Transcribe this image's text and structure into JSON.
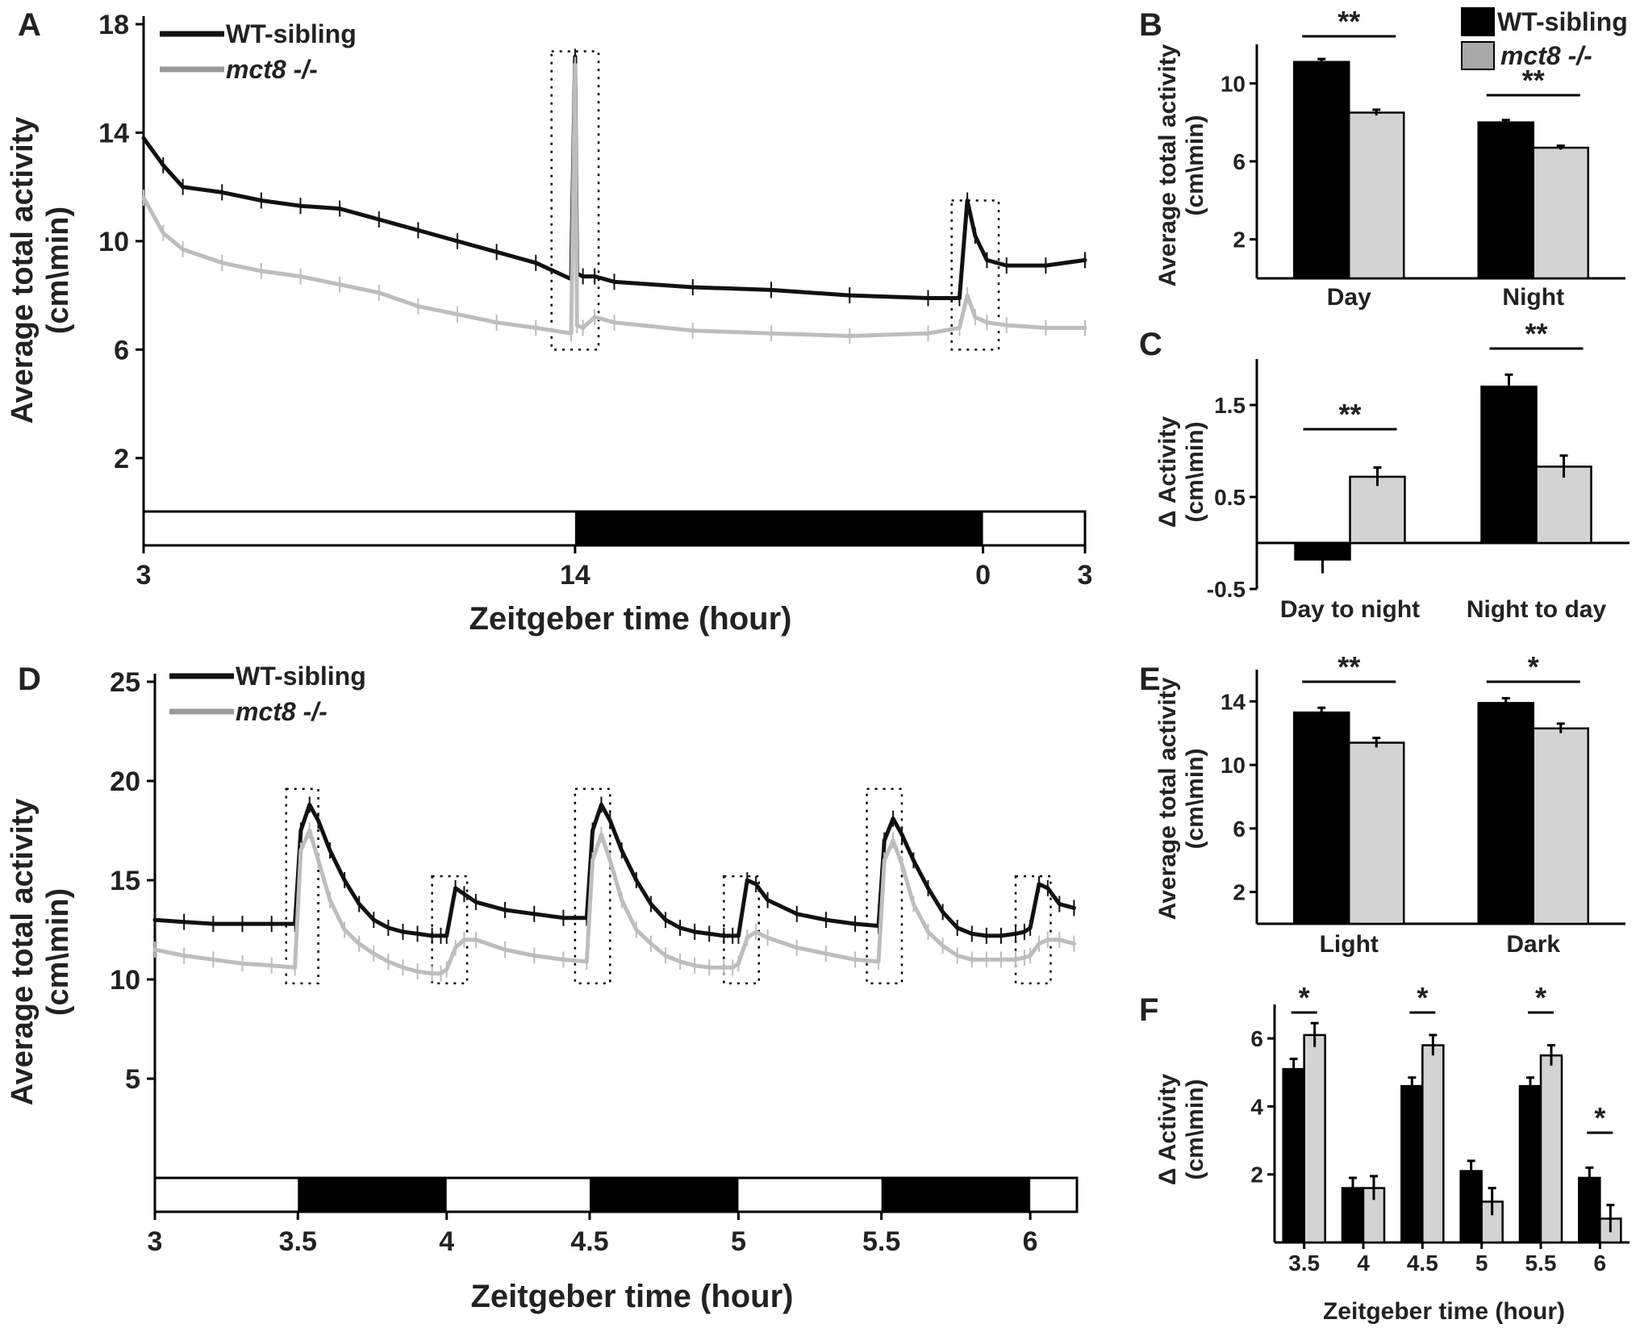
{
  "chart_data": [
    {
      "panel": "A",
      "type": "line",
      "xlabel": "Zeitgeber time (hour)",
      "ylabel": "Average total activity\n(cm\\min)",
      "yticks": [
        "2",
        "6",
        "10",
        "14",
        "18"
      ],
      "ylim": [
        0,
        18
      ],
      "xticks": [
        "3",
        "14",
        "0",
        "3"
      ],
      "legend": [
        "WT-sibling",
        "mct8 -/-"
      ],
      "light_dark_bar": [
        "light",
        "dark",
        "light"
      ],
      "series": [
        {
          "name": "WT-sibling",
          "color": "#111111",
          "x": [
            0,
            0.5,
            1,
            2,
            3,
            4,
            5,
            6,
            7,
            8,
            9,
            10,
            10.9,
            11,
            11.05,
            11.2,
            11.5,
            12,
            14,
            16,
            18,
            20,
            20.8,
            21,
            21.2,
            21.5,
            22,
            23,
            24
          ],
          "y": [
            13.8,
            12.8,
            12.0,
            11.8,
            11.5,
            11.3,
            11.2,
            10.8,
            10.4,
            10.0,
            9.6,
            9.2,
            8.6,
            16.8,
            8.8,
            8.7,
            8.7,
            8.5,
            8.3,
            8.2,
            8.0,
            7.9,
            7.9,
            11.5,
            10.2,
            9.3,
            9.1,
            9.1,
            9.3
          ]
        },
        {
          "name": "mct8 -/-",
          "color": "#bdbdbd",
          "x": [
            0,
            0.5,
            1,
            2,
            3,
            4,
            5,
            6,
            7,
            8,
            9,
            10,
            10.9,
            11,
            11.05,
            11.2,
            11.5,
            12,
            14,
            16,
            18,
            20,
            20.8,
            21,
            21.2,
            21.5,
            22,
            23,
            24
          ],
          "y": [
            11.6,
            10.3,
            9.7,
            9.2,
            8.9,
            8.7,
            8.4,
            8.1,
            7.6,
            7.3,
            7.0,
            6.8,
            6.6,
            16.5,
            6.9,
            6.8,
            7.2,
            7.0,
            6.7,
            6.6,
            6.5,
            6.6,
            6.8,
            8.0,
            7.2,
            7.0,
            6.9,
            6.8,
            6.8
          ]
        }
      ]
    },
    {
      "panel": "B",
      "type": "bar",
      "ylabel": "Average total activity\n(cm\\min)",
      "yticks": [
        "2",
        "6",
        "10"
      ],
      "ylim": [
        0,
        12
      ],
      "categories": [
        "Day",
        "Night"
      ],
      "legend": [
        "WT-sibling",
        "mct8 -/-"
      ],
      "series": [
        {
          "name": "WT-sibling",
          "color": "#000000",
          "values": [
            11.1,
            8.0
          ],
          "errors": [
            0.15,
            0.12
          ]
        },
        {
          "name": "mct8 -/-",
          "color": "#d3d3d3",
          "values": [
            8.5,
            6.7
          ],
          "errors": [
            0.15,
            0.1
          ]
        }
      ],
      "significance": [
        "**",
        "**"
      ]
    },
    {
      "panel": "C",
      "type": "bar",
      "ylabel": "Δ Activity\n(cm\\min)",
      "yticks": [
        "-0.5",
        "0.5",
        "1.5"
      ],
      "ylim": [
        -0.5,
        2.0
      ],
      "categories": [
        "Day to night",
        "Night to day"
      ],
      "series": [
        {
          "name": "WT-sibling",
          "color": "#000000",
          "values": [
            -0.18,
            1.7
          ],
          "errors": [
            0.15,
            0.13
          ]
        },
        {
          "name": "mct8 -/-",
          "color": "#d3d3d3",
          "values": [
            0.72,
            0.83
          ],
          "errors": [
            0.1,
            0.12
          ]
        }
      ],
      "significance": [
        "**",
        "**"
      ]
    },
    {
      "panel": "D",
      "type": "line",
      "xlabel": "Zeitgeber time (hour)",
      "ylabel": "Average total activity\n(cm\\min)",
      "yticks": [
        "5",
        "10",
        "15",
        "20",
        "25"
      ],
      "ylim": [
        0,
        25
      ],
      "xticks": [
        "3",
        "3.5",
        "4",
        "4.5",
        "5",
        "5.5",
        "6"
      ],
      "legend": [
        "WT-sibling",
        "mct8 -/-"
      ],
      "light_dark_bar": [
        "light",
        "dark",
        "light",
        "dark",
        "light",
        "dark",
        "light"
      ],
      "series": [
        {
          "name": "WT-sibling",
          "color": "#111111",
          "x": [
            3.0,
            3.1,
            3.2,
            3.3,
            3.4,
            3.48,
            3.5,
            3.53,
            3.56,
            3.6,
            3.65,
            3.7,
            3.75,
            3.8,
            3.85,
            3.9,
            3.95,
            3.98,
            4.0,
            4.03,
            4.06,
            4.1,
            4.2,
            4.3,
            4.4,
            4.48,
            4.5,
            4.53,
            4.56,
            4.6,
            4.65,
            4.7,
            4.75,
            4.8,
            4.85,
            4.9,
            4.95,
            4.98,
            5.0,
            5.03,
            5.06,
            5.1,
            5.2,
            5.3,
            5.4,
            5.48,
            5.5,
            5.53,
            5.56,
            5.6,
            5.65,
            5.7,
            5.75,
            5.8,
            5.85,
            5.9,
            5.95,
            5.98,
            6.0,
            6.03,
            6.06,
            6.1,
            6.15
          ],
          "y": [
            13.0,
            12.9,
            12.8,
            12.8,
            12.8,
            12.8,
            17.5,
            18.8,
            18.0,
            16.5,
            15.0,
            13.8,
            13.0,
            12.6,
            12.4,
            12.3,
            12.2,
            12.2,
            12.2,
            14.6,
            14.3,
            13.9,
            13.5,
            13.3,
            13.1,
            13.1,
            17.5,
            18.8,
            18.0,
            16.5,
            15.0,
            13.8,
            13.0,
            12.6,
            12.4,
            12.3,
            12.2,
            12.2,
            12.2,
            15.0,
            14.8,
            14.0,
            13.3,
            13.0,
            12.8,
            12.7,
            17.0,
            18.1,
            17.3,
            16.0,
            14.6,
            13.4,
            12.6,
            12.3,
            12.2,
            12.2,
            12.3,
            12.4,
            12.6,
            14.8,
            14.6,
            13.8,
            13.6
          ]
        },
        {
          "name": "mct8 -/-",
          "color": "#bdbdbd",
          "x": [
            3.0,
            3.1,
            3.2,
            3.3,
            3.4,
            3.48,
            3.5,
            3.53,
            3.56,
            3.6,
            3.65,
            3.7,
            3.75,
            3.8,
            3.85,
            3.9,
            3.95,
            3.98,
            4.0,
            4.03,
            4.06,
            4.1,
            4.2,
            4.3,
            4.4,
            4.48,
            4.5,
            4.53,
            4.56,
            4.6,
            4.65,
            4.7,
            4.75,
            4.8,
            4.85,
            4.9,
            4.95,
            4.98,
            5.0,
            5.03,
            5.06,
            5.1,
            5.2,
            5.3,
            5.4,
            5.48,
            5.5,
            5.53,
            5.56,
            5.6,
            5.65,
            5.7,
            5.75,
            5.8,
            5.85,
            5.9,
            5.95,
            5.98,
            6.0,
            6.03,
            6.06,
            6.1,
            6.15
          ],
          "y": [
            11.5,
            11.2,
            11.0,
            10.8,
            10.7,
            10.6,
            16.5,
            17.5,
            16.0,
            14.0,
            12.5,
            11.8,
            11.3,
            10.9,
            10.6,
            10.4,
            10.3,
            10.3,
            10.5,
            11.6,
            12.0,
            12.0,
            11.5,
            11.2,
            11.0,
            10.9,
            16.0,
            17.3,
            16.0,
            14.0,
            12.5,
            11.8,
            11.2,
            10.9,
            10.7,
            10.6,
            10.6,
            10.6,
            10.8,
            12.1,
            12.4,
            12.1,
            11.6,
            11.3,
            11.0,
            10.9,
            16.0,
            17.0,
            15.8,
            13.8,
            12.4,
            11.7,
            11.2,
            11.0,
            11.0,
            11.0,
            11.0,
            11.1,
            11.2,
            11.8,
            12.0,
            12.0,
            11.8
          ]
        }
      ]
    },
    {
      "panel": "E",
      "type": "bar",
      "ylabel": "Average total activity\n(cm\\min)",
      "yticks": [
        "2",
        "6",
        "10",
        "14"
      ],
      "ylim": [
        0,
        16
      ],
      "categories": [
        "Light",
        "Dark"
      ],
      "series": [
        {
          "name": "WT-sibling",
          "color": "#000000",
          "values": [
            13.3,
            13.9
          ],
          "errors": [
            0.3,
            0.3
          ]
        },
        {
          "name": "mct8 -/-",
          "color": "#d3d3d3",
          "values": [
            11.4,
            12.3
          ],
          "errors": [
            0.3,
            0.3
          ]
        }
      ],
      "significance": [
        "**",
        "*"
      ]
    },
    {
      "panel": "F",
      "type": "bar",
      "xlabel": "Zeitgeber time (hour)",
      "ylabel": "Δ Activity\n(cm\\min)",
      "yticks": [
        "2",
        "4",
        "6"
      ],
      "ylim": [
        0,
        7
      ],
      "categories": [
        "3.5",
        "4",
        "4.5",
        "5",
        "5.5",
        "6"
      ],
      "series": [
        {
          "name": "WT-sibling",
          "color": "#000000",
          "values": [
            5.1,
            1.6,
            4.6,
            2.1,
            4.6,
            1.9
          ],
          "errors": [
            0.3,
            0.3,
            0.25,
            0.3,
            0.25,
            0.3
          ]
        },
        {
          "name": "mct8 -/-",
          "color": "#d3d3d3",
          "values": [
            6.1,
            1.6,
            5.8,
            1.2,
            5.5,
            0.7
          ],
          "errors": [
            0.35,
            0.35,
            0.3,
            0.4,
            0.3,
            0.4
          ]
        }
      ],
      "significance": [
        "*",
        "",
        "*",
        "",
        "*",
        "*"
      ]
    }
  ],
  "panel_letters": [
    "A",
    "B",
    "C",
    "D",
    "E",
    "F"
  ],
  "legend_labels": {
    "wt": "WT-sibling",
    "mct8": "mct8 -/-"
  }
}
